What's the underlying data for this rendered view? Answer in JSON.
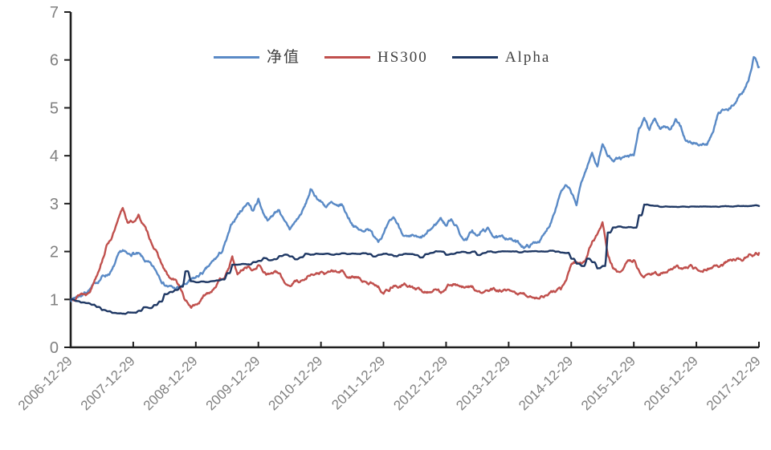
{
  "chart_data": {
    "type": "line",
    "title": "",
    "grid": false,
    "legend_position": "top-center",
    "ylim": [
      0,
      7
    ],
    "y_ticks": [
      0,
      1,
      2,
      3,
      4,
      5,
      6,
      7
    ],
    "x_tick_labels": [
      "2006-12-29",
      "2007-12-29",
      "2008-12-29",
      "2009-12-29",
      "2010-12-29",
      "2011-12-29",
      "2012-12-29",
      "2013-12-29",
      "2014-12-29",
      "2015-12-29",
      "2016-12-29",
      "2017-12-29"
    ],
    "x_sampling": "monthly values from 2006-12-29 to 2017-12-29",
    "axis_color": "#1f1f1f",
    "tick_label_color": "#808080",
    "series": [
      {
        "key": "nav",
        "name": "净值",
        "color": "#5A8AC6",
        "monthly": [
          1.0,
          1.06,
          1.1,
          1.18,
          1.26,
          1.35,
          1.48,
          1.53,
          1.62,
          1.85,
          1.98,
          1.88,
          1.95,
          1.92,
          1.8,
          1.72,
          1.6,
          1.48,
          1.35,
          1.28,
          1.22,
          1.25,
          1.3,
          1.36,
          1.42,
          1.52,
          1.6,
          1.72,
          1.85,
          1.98,
          2.25,
          2.55,
          2.75,
          2.9,
          3.05,
          2.85,
          3.1,
          2.8,
          2.68,
          2.8,
          2.9,
          2.6,
          2.45,
          2.6,
          2.75,
          2.95,
          3.27,
          3.15,
          3.05,
          2.95,
          3.0,
          2.88,
          2.95,
          2.75,
          2.6,
          2.48,
          2.4,
          2.52,
          2.35,
          2.28,
          2.4,
          2.55,
          2.68,
          2.5,
          2.35,
          2.25,
          2.28,
          2.22,
          2.3,
          2.42,
          2.55,
          2.7,
          2.55,
          2.7,
          2.55,
          2.3,
          2.26,
          2.43,
          2.3,
          2.42,
          2.45,
          2.35,
          2.28,
          2.25,
          2.3,
          2.22,
          2.15,
          2.11,
          2.12,
          2.18,
          2.25,
          2.36,
          2.6,
          2.95,
          3.3,
          3.37,
          3.2,
          2.95,
          3.45,
          3.75,
          4.05,
          3.8,
          4.27,
          3.98,
          3.95,
          3.96,
          3.94,
          3.95,
          3.95,
          4.55,
          4.74,
          4.5,
          4.77,
          4.6,
          4.65,
          4.55,
          4.7,
          4.6,
          4.3,
          4.25,
          4.25,
          4.25,
          4.25,
          4.4,
          4.79,
          4.94,
          4.91,
          5.02,
          5.2,
          5.35,
          5.6,
          6.1,
          5.85
        ]
      },
      {
        "key": "hs300",
        "name": "HS300",
        "color": "#C0504D",
        "monthly": [
          1.0,
          1.08,
          1.15,
          1.12,
          1.28,
          1.55,
          1.86,
          2.18,
          2.35,
          2.6,
          2.88,
          2.6,
          2.62,
          2.75,
          2.55,
          2.3,
          2.1,
          1.85,
          1.6,
          1.42,
          1.38,
          1.25,
          0.95,
          0.84,
          0.89,
          0.98,
          1.11,
          1.2,
          1.35,
          1.42,
          1.56,
          1.86,
          1.5,
          1.62,
          1.7,
          1.6,
          1.72,
          1.6,
          1.55,
          1.58,
          1.52,
          1.35,
          1.3,
          1.38,
          1.4,
          1.42,
          1.55,
          1.52,
          1.56,
          1.5,
          1.58,
          1.55,
          1.6,
          1.5,
          1.48,
          1.45,
          1.38,
          1.3,
          1.35,
          1.28,
          1.17,
          1.22,
          1.32,
          1.28,
          1.3,
          1.28,
          1.22,
          1.18,
          1.15,
          1.18,
          1.2,
          1.16,
          1.28,
          1.35,
          1.32,
          1.25,
          1.22,
          1.25,
          1.15,
          1.12,
          1.18,
          1.18,
          1.15,
          1.18,
          1.14,
          1.1,
          1.12,
          1.08,
          1.06,
          1.07,
          1.05,
          1.1,
          1.14,
          1.17,
          1.2,
          1.35,
          1.73,
          1.78,
          1.75,
          1.9,
          2.2,
          2.35,
          2.6,
          1.95,
          1.67,
          1.55,
          1.68,
          1.8,
          1.83,
          1.6,
          1.47,
          1.53,
          1.58,
          1.55,
          1.56,
          1.6,
          1.64,
          1.62,
          1.64,
          1.68,
          1.62,
          1.65,
          1.68,
          1.7,
          1.71,
          1.72,
          1.78,
          1.82,
          1.85,
          1.88,
          1.95,
          1.92,
          1.97
        ]
      },
      {
        "key": "alpha",
        "name": "Alpha",
        "color": "#1F3864",
        "monthly": [
          1.0,
          0.97,
          0.94,
          0.92,
          0.89,
          0.84,
          0.78,
          0.75,
          0.72,
          0.71,
          0.7,
          0.73,
          0.72,
          0.76,
          0.84,
          0.82,
          0.88,
          0.95,
          1.11,
          1.15,
          1.2,
          1.27,
          1.59,
          1.38,
          1.36,
          1.37,
          1.36,
          1.38,
          1.4,
          1.42,
          1.55,
          1.73,
          1.73,
          1.74,
          1.73,
          1.78,
          1.8,
          1.86,
          1.82,
          1.84,
          1.9,
          1.93,
          1.9,
          1.84,
          1.88,
          1.95,
          1.93,
          1.95,
          1.95,
          1.95,
          1.93,
          1.95,
          1.97,
          1.95,
          1.96,
          1.95,
          1.97,
          1.95,
          1.9,
          1.93,
          1.95,
          1.93,
          1.9,
          1.93,
          1.95,
          1.95,
          1.93,
          1.88,
          1.95,
          1.97,
          2.0,
          2.0,
          1.93,
          1.95,
          1.98,
          2.0,
          1.98,
          2.0,
          1.93,
          1.97,
          2.0,
          1.98,
          2.0,
          2.0,
          2.0,
          2.0,
          1.98,
          2.0,
          2.0,
          2.0,
          2.0,
          2.0,
          2.02,
          2.0,
          1.98,
          1.97,
          1.85,
          1.75,
          1.7,
          1.85,
          1.78,
          1.65,
          1.7,
          2.4,
          2.5,
          2.52,
          2.5,
          2.51,
          2.5,
          2.76,
          2.98,
          2.96,
          2.95,
          2.93,
          2.94,
          2.93,
          2.93,
          2.94,
          2.93,
          2.94,
          2.94,
          2.94,
          2.94,
          2.94,
          2.94,
          2.94,
          2.94,
          2.94,
          2.95,
          2.95,
          2.95,
          2.96,
          2.95
        ]
      }
    ]
  }
}
